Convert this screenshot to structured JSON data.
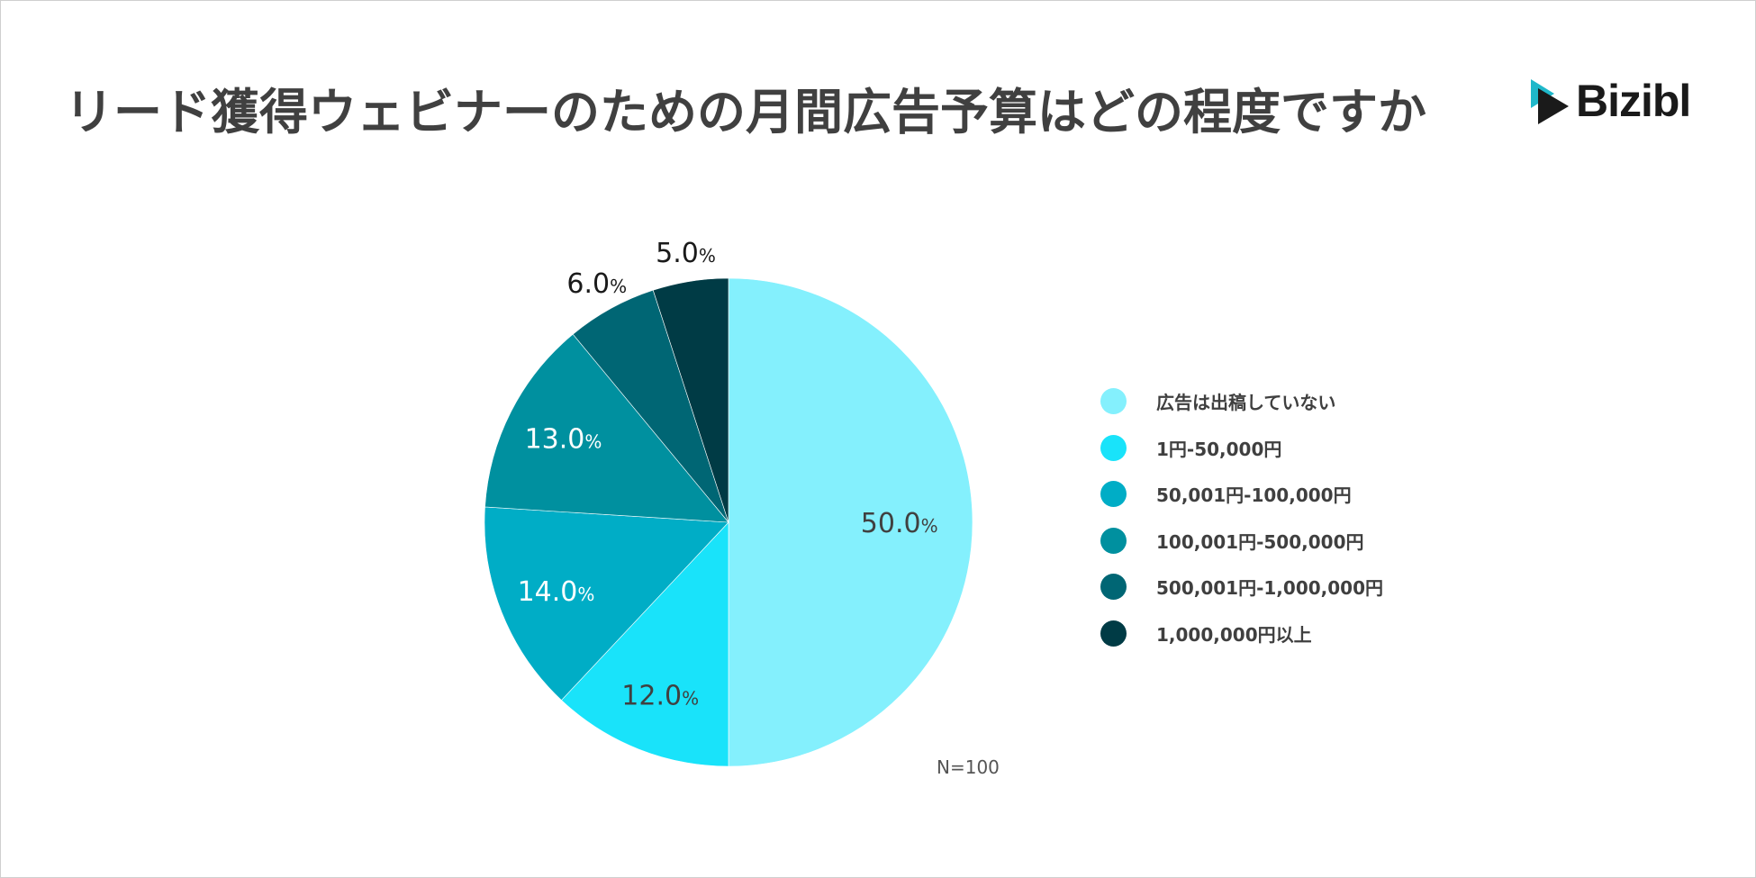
{
  "title": "リード獲得ウェビナーのための月間広告予算はどの程度ですか",
  "logo": {
    "text": "Bizibl",
    "icon": "bizibl-play-icon"
  },
  "note": "N=100",
  "colors": {
    "slice_1": "#84F0FD",
    "slice_2": "#19E3FA",
    "slice_3": "#00ADC6",
    "slice_4": "#00909F",
    "slice_5": "#006674",
    "slice_6": "#003B45",
    "label_dark": "#404040",
    "label_light": "#ffffff",
    "logo_teal": "#1FB8CA"
  },
  "chart_data": {
    "type": "pie",
    "title": "リード獲得ウェビナーのための月間広告予算はどの程度ですか",
    "categories": [
      "広告は出稿していない",
      "1円-50,000円",
      "50,001円-100,000円",
      "100,001円-500,000円",
      "500,001円-1,000,000円",
      "1,000,000円以上"
    ],
    "values": [
      50.0,
      12.0,
      14.0,
      13.0,
      6.0,
      5.0
    ],
    "data_labels": [
      "50.0%",
      "12.0%",
      "14.0%",
      "13.0%",
      "6.0%",
      "5.0%"
    ],
    "unit": "%",
    "start": "12 o'clock",
    "direction": "clockwise",
    "legend_position": "right"
  }
}
